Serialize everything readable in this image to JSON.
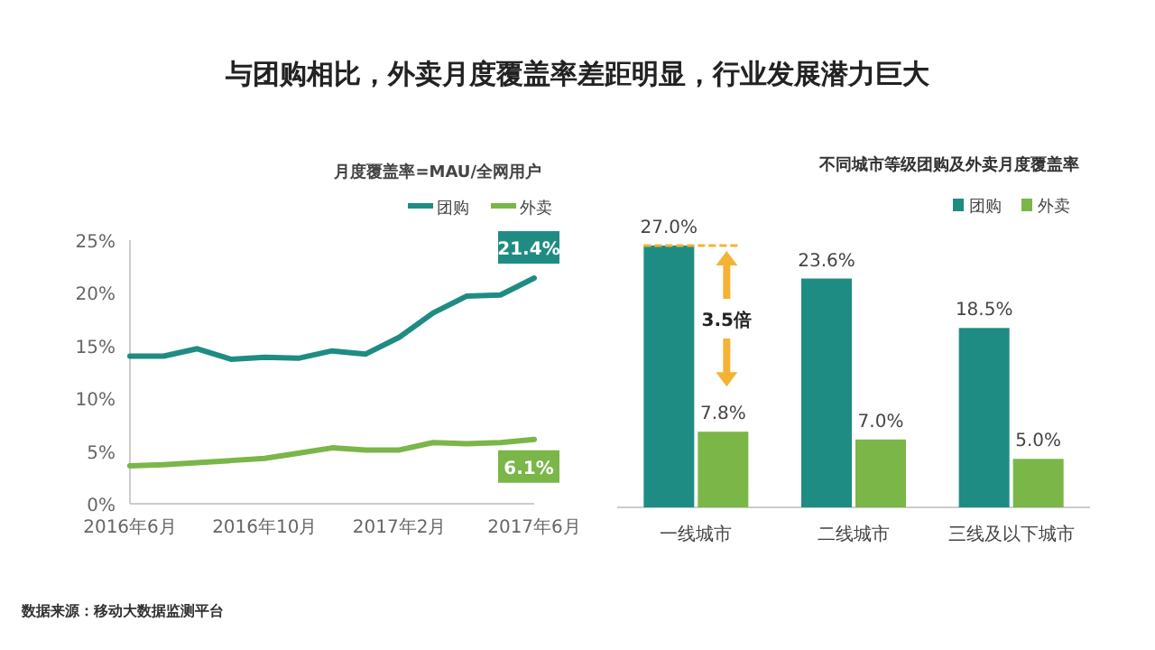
{
  "chart_data": [
    {
      "type": "line",
      "title": "与团购相比，外卖月度覆盖率差距明显，行业发展潜力巨大",
      "subtitle": "月度覆盖率=MAU/全网用户",
      "x": [
        "2016-06",
        "2016-07",
        "2016-08",
        "2016-09",
        "2016-10",
        "2016-11",
        "2016-12",
        "2017-01",
        "2017-02",
        "2017-03",
        "2017-04",
        "2017-05",
        "2017-06"
      ],
      "series": [
        {
          "name": "团购",
          "color": "#1f8c84",
          "values": [
            14.0,
            14.0,
            14.7,
            13.7,
            13.9,
            13.8,
            14.5,
            14.2,
            15.8,
            18.1,
            19.7,
            19.8,
            21.4
          ],
          "value_labels": [
            null,
            null,
            null,
            null,
            null,
            null,
            null,
            null,
            null,
            null,
            null,
            null,
            "21.4%"
          ]
        },
        {
          "name": "外卖",
          "color": "#7ab648",
          "values": [
            3.6,
            3.7,
            3.9,
            4.1,
            4.3,
            4.8,
            5.3,
            5.1,
            5.1,
            5.8,
            5.7,
            5.8,
            6.1
          ],
          "value_labels": [
            null,
            null,
            null,
            null,
            null,
            null,
            null,
            null,
            null,
            null,
            null,
            null,
            "6.1%"
          ]
        }
      ],
      "xlim": [
        "2016-06",
        "2017-06"
      ],
      "xticks": [
        {
          "value": "2016-06",
          "label": "2016年6月"
        },
        {
          "value": "2016-10",
          "label": "2016年10月"
        },
        {
          "value": "2017-02",
          "label": "2017年2月"
        },
        {
          "value": "2017-06",
          "label": "2017年6月"
        }
      ],
      "ylim": [
        0,
        25
      ],
      "yticks": [
        {
          "value": 0,
          "label": "0%"
        },
        {
          "value": 5,
          "label": "5%"
        },
        {
          "value": 10,
          "label": "10%"
        },
        {
          "value": 15,
          "label": "15%"
        },
        {
          "value": 20,
          "label": "20%"
        },
        {
          "value": 25,
          "label": "25%"
        }
      ],
      "legend": "top right",
      "marker": "none",
      "line_style": "solid",
      "annotations": [
        "数据来源：移动大数据监测平台"
      ]
    },
    {
      "type": "bar",
      "title": "不同城市等级团购及外卖月度覆盖率",
      "categories": [
        "一线城市",
        "二线城市",
        "三线及以下城市"
      ],
      "series": [
        {
          "name": "团购",
          "color": "#1f8c84",
          "values": [
            27.0,
            23.6,
            18.5
          ],
          "value_labels": [
            "27.0%",
            "23.6%",
            "18.5%"
          ]
        },
        {
          "name": "外卖",
          "color": "#7ab648",
          "values": [
            7.8,
            7.0,
            5.0
          ],
          "value_labels": [
            "7.8%",
            "7.0%",
            "5.0%"
          ]
        }
      ],
      "legend": "top right",
      "annotations": [
        "3.5倍"
      ]
    }
  ]
}
